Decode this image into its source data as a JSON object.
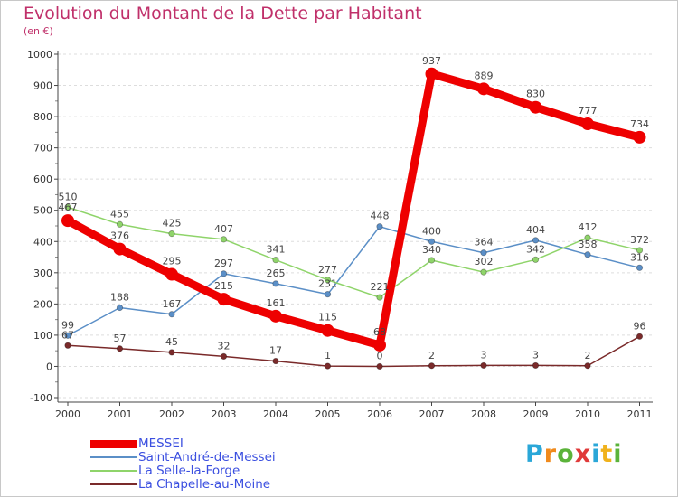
{
  "title": "Evolution du Montant de la Dette par Habitant",
  "subtitle": "(en €)",
  "logo_text": "Proxiti",
  "colors": {
    "title": "#c0306a",
    "grid": "#dddddd",
    "axis": "#444444",
    "legend_text": "#3b4fe0"
  },
  "chart_data": {
    "type": "line",
    "title": "Evolution du Montant de la Dette par Habitant",
    "subtitle": "(en €)",
    "xlabel": "",
    "ylabel": "",
    "x": [
      "2000",
      "2001",
      "2002",
      "2003",
      "2004",
      "2005",
      "2006",
      "2007",
      "2008",
      "2009",
      "2010",
      "2011"
    ],
    "ylim": [
      -100,
      1000
    ],
    "yticks": [
      -100,
      0,
      100,
      200,
      300,
      400,
      500,
      600,
      700,
      800,
      900,
      1000
    ],
    "grid": "horizontal dashed",
    "legend": "bottom-left",
    "series": [
      {
        "name": "MESSEI",
        "color": "#ee0000",
        "width": 9,
        "marker": 7,
        "values": [
          467,
          376,
          295,
          215,
          161,
          115,
          68,
          937,
          889,
          830,
          777,
          734
        ],
        "labels": [
          "467",
          "376",
          "295",
          "215",
          "161",
          "115",
          "68",
          "937",
          "889",
          "830",
          "777",
          "734"
        ]
      },
      {
        "name": "Saint-André-de-Messei",
        "color": "#5b8fc7",
        "width": 1.5,
        "marker": 3.2,
        "values": [
          99,
          188,
          167,
          297,
          265,
          231,
          448,
          400,
          364,
          404,
          358,
          316
        ],
        "labels": [
          "99",
          "188",
          "167",
          "297",
          "265",
          "231",
          "448",
          "400",
          "364",
          "404",
          "358",
          "316"
        ]
      },
      {
        "name": "La Selle-la-Forge",
        "color": "#8fd46a",
        "width": 1.5,
        "marker": 3.2,
        "values": [
          510,
          455,
          425,
          407,
          341,
          277,
          221,
          340,
          302,
          342,
          412,
          372
        ],
        "labels": [
          "510",
          "455",
          "425",
          "407",
          "341",
          "277",
          "221",
          "340",
          "302",
          "342",
          "412",
          "372"
        ]
      },
      {
        "name": "La Chapelle-au-Moine",
        "color": "#7a2a2a",
        "width": 1.5,
        "marker": 3.2,
        "values": [
          67,
          57,
          45,
          32,
          17,
          1,
          0,
          2,
          3,
          3,
          2,
          96
        ],
        "labels": [
          "67",
          "57",
          "45",
          "32",
          "17",
          "1",
          "0",
          "2",
          "3",
          "3",
          "2",
          "96"
        ]
      }
    ]
  }
}
